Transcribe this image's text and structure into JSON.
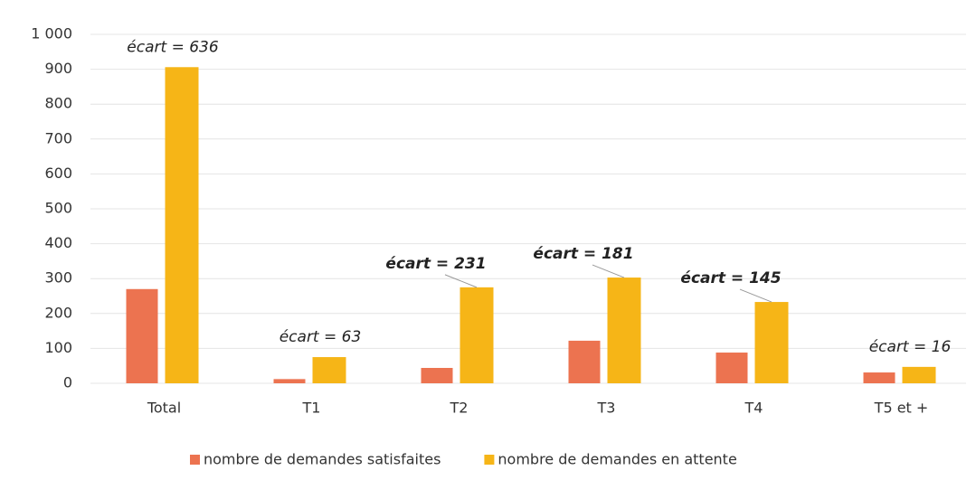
{
  "chart_data": {
    "type": "bar",
    "categories": [
      "Total",
      "T1",
      "T2",
      "T3",
      "T4",
      "T5 et +"
    ],
    "series": [
      {
        "name": "nombre de demandes satisfaites",
        "color": "#ec7350",
        "values": [
          270,
          12,
          44,
          122,
          88,
          31
        ]
      },
      {
        "name": "nombre de demandes en attente",
        "color": "#f6b517",
        "values": [
          906,
          75,
          275,
          303,
          233,
          47
        ]
      }
    ],
    "ylim": [
      0,
      1000
    ],
    "yticks": [
      0,
      100,
      200,
      300,
      400,
      500,
      600,
      700,
      800,
      900,
      {
        "value": 1000,
        "label": "1 000"
      }
    ],
    "grid": true,
    "legend": "bottom",
    "annotations": [
      {
        "text": "écart = 636",
        "category": "Total",
        "bold": false
      },
      {
        "text": "écart = 63",
        "category": "T1",
        "bold": false
      },
      {
        "text": "écart = 231",
        "category": "T2",
        "bold": true
      },
      {
        "text": "écart = 181",
        "category": "T3",
        "bold": true
      },
      {
        "text": "écart = 145",
        "category": "T4",
        "bold": true
      },
      {
        "text": "écart = 16",
        "category": "T5 et +",
        "bold": false
      }
    ]
  }
}
